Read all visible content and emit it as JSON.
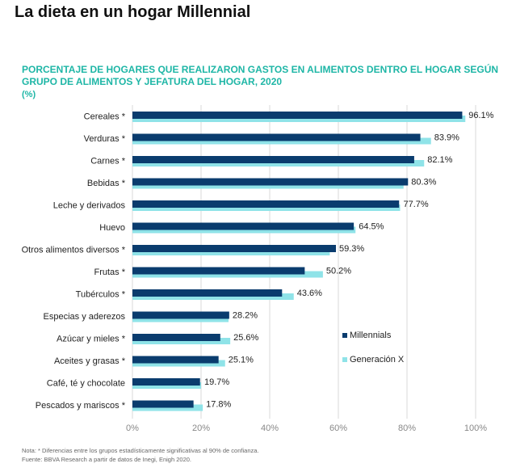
{
  "page_title": "La dieta en un hogar Millennial",
  "chart_title_line1": "PORCENTAJE DE HOGARES QUE REALIZARON GASTOS EN ALIMENTOS DENTRO EL HOGAR SEGÚN",
  "chart_title_line2": "GRUPO DE ALIMENTOS Y JEFATURA DEL HOGAR, 2020",
  "unit": "(%)",
  "notes": {
    "note": "Nota: * Diferencias entre los grupos estadísticamente significativas al 90% de confianza.",
    "source": "Fuente: BBVA Research a partir de datos de Inegi, Enigh 2020."
  },
  "colors": {
    "millennials": "#0a3c6e",
    "genx": "#8fe3e8",
    "title": "#1eb6a6"
  },
  "chart_data": {
    "type": "bar",
    "orientation": "horizontal",
    "categories": [
      "Cereales *",
      "Verduras *",
      "Carnes *",
      "Bebidas *",
      "Leche y derivados",
      "Huevo",
      "Otros alimentos diversos *",
      "Frutas *",
      "Tubérculos *",
      "Especias y aderezos",
      "Azúcar y mieles *",
      "Aceites y grasas *",
      "Café, té y chocolate",
      "Pescados y mariscos *"
    ],
    "series": [
      {
        "name": "Millennials",
        "values": [
          96.1,
          83.9,
          82.1,
          80.3,
          77.7,
          64.5,
          59.3,
          50.2,
          43.6,
          28.2,
          25.6,
          25.1,
          19.7,
          17.8
        ]
      },
      {
        "name": "Generación X",
        "values": [
          97.0,
          87.0,
          85.0,
          79.0,
          78.0,
          65.0,
          57.5,
          55.5,
          47.0,
          28.0,
          28.5,
          27.0,
          20.0,
          20.5
        ]
      }
    ],
    "data_labels": [
      "96.1%",
      "83.9%",
      "82.1%",
      "80.3%",
      "77.7%",
      "64.5%",
      "59.3%",
      "50.2%",
      "43.6%",
      "28.2%",
      "25.6%",
      "25.1%",
      "19.7%",
      "17.8%"
    ],
    "xlim": [
      0,
      100
    ],
    "xticks": [
      "0%",
      "20%",
      "40%",
      "60%",
      "80%",
      "100%"
    ],
    "legend_position": "right"
  }
}
